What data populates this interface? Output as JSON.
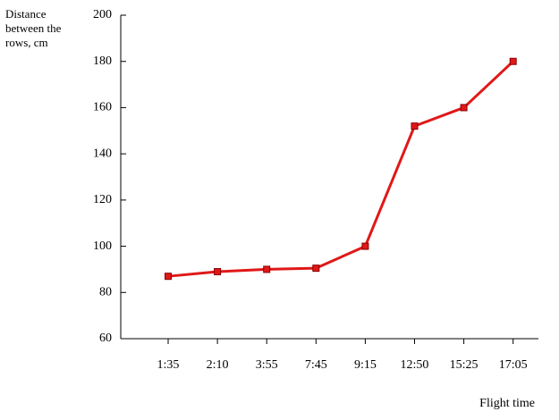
{
  "chart_data": {
    "type": "line",
    "y_label": "Distance between the rows, cm",
    "x_label": "Flight time",
    "categories": [
      "1:35",
      "2:10",
      "3:55",
      "7:45",
      "9:15",
      "12:50",
      "15:25",
      "17:05"
    ],
    "series": [
      {
        "color": "#e01818",
        "values": [
          87,
          89,
          90,
          90.5,
          100,
          152,
          160,
          180
        ]
      }
    ],
    "ylim": [
      60,
      200
    ],
    "yticks": [
      60,
      80,
      100,
      120,
      140,
      160,
      180,
      200
    ]
  }
}
